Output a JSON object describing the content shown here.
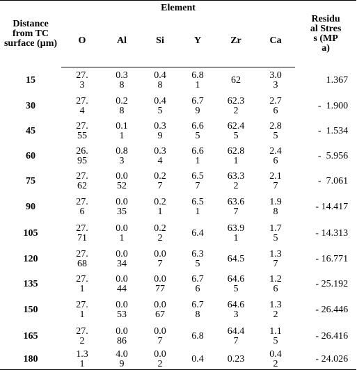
{
  "header": {
    "distance": "Distance from TC surface (µm)",
    "element_group": "Element",
    "elements": [
      "O",
      "Al",
      "Si",
      "Y",
      "Zr",
      "Ca"
    ],
    "stress": "Residual Stress (MPa)"
  },
  "rows": [
    {
      "distance": "15",
      "O": "27.3",
      "Al": "0.38",
      "Si": "0.48",
      "Y": "6.81",
      "Zr": "62",
      "Ca": "3.03",
      "stress": "1.367"
    },
    {
      "distance": "30",
      "O": "27.4",
      "Al": "0.28",
      "Si": "0.45",
      "Y": "6.79",
      "Zr": "62.32",
      "Ca": "2.76",
      "stress": "-  1.900"
    },
    {
      "distance": "45",
      "O": "27.55",
      "Al": "0.11",
      "Si": "0.39",
      "Y": "6.65",
      "Zr": "62.45",
      "Ca": "2.85",
      "stress": "-  1.534"
    },
    {
      "distance": "60",
      "O": "26.95",
      "Al": "0.83",
      "Si": "0.34",
      "Y": "6.61",
      "Zr": "62.81",
      "Ca": "2.46",
      "stress": "-  5.956"
    },
    {
      "distance": "75",
      "O": "27.62",
      "Al": "0.052",
      "Si": "0.27",
      "Y": "6.57",
      "Zr": "63.32",
      "Ca": "2.17",
      "stress": "-  7.061"
    },
    {
      "distance": "90",
      "O": "27.6",
      "Al": "0.035",
      "Si": "0.21",
      "Y": "6.51",
      "Zr": "63.67",
      "Ca": "1.98",
      "stress": "- 14.417"
    },
    {
      "distance": "105",
      "O": "27.71",
      "Al": "0.01",
      "Si": "0.22",
      "Y": "6.4",
      "Zr": "63.91",
      "Ca": "1.75",
      "stress": "- 14.313"
    },
    {
      "distance": "120",
      "O": "27.68",
      "Al": "0.034",
      "Si": "0.07",
      "Y": "6.35",
      "Zr": "64.5",
      "Ca": "1.37",
      "stress": "- 16.771"
    },
    {
      "distance": "135",
      "O": "27.1",
      "Al": "0.044",
      "Si": "0.077",
      "Y": "6.76",
      "Zr": "64.65",
      "Ca": "1.26",
      "stress": "- 25.192"
    },
    {
      "distance": "150",
      "O": "27.1",
      "Al": "0.053",
      "Si": "0.067",
      "Y": "6.78",
      "Zr": "64.63",
      "Ca": "1.32",
      "stress": "- 26.446"
    },
    {
      "distance": "165",
      "O": "27.2",
      "Al": "0.086",
      "Si": "0.07",
      "Y": "6.8",
      "Zr": "64.47",
      "Ca": "1.15",
      "stress": "- 26.416"
    },
    {
      "distance": "180",
      "O": "1.31",
      "Al": "4.09",
      "Si": "0.02",
      "Y": "0.4",
      "Zr": "0.23",
      "Ca": "0.42",
      "stress": "- 24.026"
    }
  ]
}
